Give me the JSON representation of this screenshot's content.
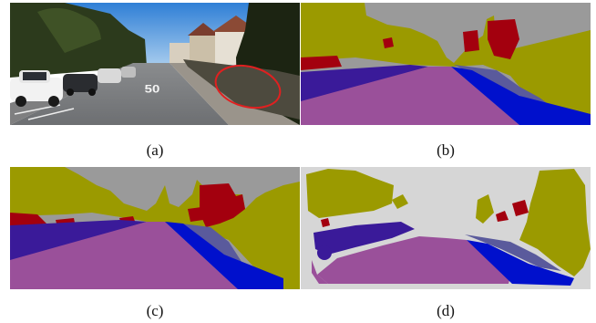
{
  "captions": {
    "a": "(a)",
    "b": "(b)",
    "c": "(c)",
    "d": "(d)"
  },
  "road_marking": "50",
  "colors": {
    "sky_gray": "#9a9a9a",
    "vegetation": "#9b9a00",
    "building": "#a3000e",
    "sidewalk": "#3a1a99",
    "road": "#9a509a",
    "lane": "#0010cc",
    "terrain": "#5a5a9c",
    "void": "#d6d6d6",
    "annotation_ring": "#e02020"
  }
}
